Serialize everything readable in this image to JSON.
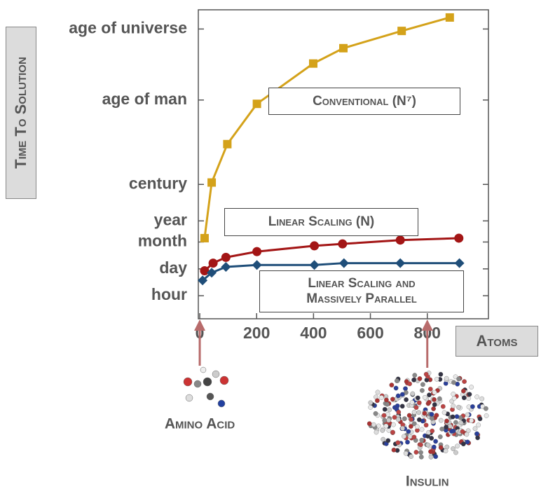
{
  "chart_data": {
    "type": "line",
    "y_axis_label": "Time To Solution",
    "x_axis_label": "Atoms",
    "xlim": [
      -5,
      1015
    ],
    "xticks": [
      0,
      200,
      400,
      600,
      800
    ],
    "ylim": [
      -1.2,
      14.9
    ],
    "yticks": [
      {
        "value": 0,
        "label": "hour"
      },
      {
        "value": 1.4,
        "label": "day"
      },
      {
        "value": 2.8,
        "label": "month"
      },
      {
        "value": 3.9,
        "label": "year"
      },
      {
        "value": 5.8,
        "label": "century"
      },
      {
        "value": 10.2,
        "label": "age of man"
      },
      {
        "value": 13.9,
        "label": "age of universe"
      }
    ],
    "series": [
      {
        "name": "Conventional (N⁷)",
        "color": "#d4a21a",
        "marker": "square",
        "x": [
          17,
          42,
          97,
          201,
          399,
          505,
          710,
          879
        ],
        "values": [
          3.0,
          5.9,
          7.9,
          10.0,
          12.1,
          12.9,
          13.8,
          14.5
        ]
      },
      {
        "name": "Linear Scaling (N)",
        "color": "#a31515",
        "marker": "circle",
        "x": [
          17,
          47,
          92,
          201,
          403,
          502,
          705,
          911
        ],
        "values": [
          1.3,
          1.7,
          2.0,
          2.3,
          2.6,
          2.7,
          2.9,
          3.0
        ]
      },
      {
        "name": "Linear Scaling and Massively Parallel",
        "color": "#1f4e79",
        "marker": "diamond",
        "x": [
          10,
          42,
          92,
          201,
          403,
          507,
          705,
          913
        ],
        "values": [
          0.8,
          1.2,
          1.5,
          1.6,
          1.6,
          1.7,
          1.7,
          1.7
        ]
      }
    ],
    "markers": [
      {
        "label": "Amino Acid",
        "x": 0
      },
      {
        "label": "Insulin",
        "x": 800
      }
    ]
  }
}
